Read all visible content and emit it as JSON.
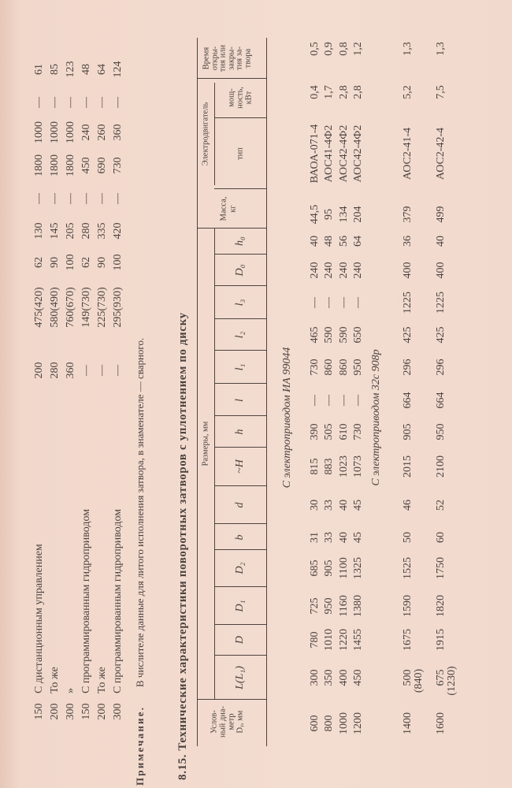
{
  "table1": {
    "rows": [
      [
        "150",
        "С дистанционным управлением",
        "200",
        "475(420)",
        "62",
        "130",
        "—",
        "1800",
        "1000",
        "—",
        "61"
      ],
      [
        "200",
        "То же",
        "280",
        "580(490)",
        "90",
        "145",
        "—",
        "1800",
        "1000",
        "—",
        "85"
      ],
      [
        "300",
        "»",
        "360",
        "760(670)",
        "100",
        "205",
        "—",
        "1800",
        "1000",
        "—",
        "123"
      ],
      [
        "150",
        "С программированным гидроприводом",
        "—",
        "149(730)",
        "62",
        "280",
        "—",
        "450",
        "240",
        "—",
        "48"
      ],
      [
        "200",
        "То же",
        "—",
        "225(730)",
        "90",
        "335",
        "—",
        "690",
        "260",
        "—",
        "64"
      ],
      [
        "300",
        "С программированным гидроприводом",
        "—",
        "295(930)",
        "100",
        "420",
        "—",
        "730",
        "360",
        "—",
        "124"
      ]
    ]
  },
  "note": {
    "label": "Примечание.",
    "text": "В числителе данные для литого исполнения затвора, в знаменателе — сварного."
  },
  "title": "8.15. Технические характеристики поворотных затворов с уплотнением по диску",
  "table2": {
    "header": {
      "dy": [
        "Услов-",
        "ный диа-",
        "метр",
        "Dᵧ, мм"
      ],
      "sizes_group": "Размеры, мм",
      "size_columns": [
        "L(L₁)",
        "D",
        "D₁",
        "D₂",
        "b",
        "d",
        "~H",
        "h",
        "l",
        "l₁",
        "l₂",
        "l₃",
        "D₀",
        "h₀"
      ],
      "mass": [
        "Масса,",
        "кг"
      ],
      "motor_group": "Электродвигатель",
      "motor_type": "тип",
      "motor_power": [
        "мощ-",
        "ность,",
        "кВт"
      ],
      "time": [
        "Время",
        "откры-",
        "тия или",
        "закры-",
        "тия за-",
        "твора"
      ]
    },
    "groups": [
      {
        "subtitle": "С электроприводом ИА 99044",
        "rows": [
          {
            "cells": [
              "600",
              "300",
              "780",
              "725",
              "685",
              "31",
              "30",
              "815",
              "390",
              "—",
              "730",
              "465",
              "—",
              "240",
              "40",
              "44,5",
              "ВАОА-071-4",
              "0,4",
              "0,5"
            ]
          },
          {
            "cells": [
              "800",
              "350",
              "1010",
              "950",
              "905",
              "33",
              "33",
              "883",
              "505",
              "—",
              "860",
              "590",
              "—",
              "240",
              "48",
              "95",
              "АОС41-4Ф2",
              "1,7",
              "0,9"
            ]
          },
          {
            "cells": [
              "1000",
              "400",
              "1220",
              "1160",
              "1100",
              "40",
              "40",
              "1023",
              "610",
              "—",
              "860",
              "590",
              "—",
              "240",
              "56",
              "134",
              "АОС42-4Ф2",
              "2,8",
              "0,8"
            ]
          },
          {
            "cells": [
              "1200",
              "450",
              "1455",
              "1380",
              "1325",
              "45",
              "45",
              "1073",
              "730",
              "—",
              "950",
              "650",
              "—",
              "240",
              "64",
              "204",
              "АОС42-4Ф2",
              "2,8",
              "1,2"
            ]
          }
        ]
      },
      {
        "subtitle": "С электроприводом 32с 908р",
        "rows": [
          {
            "cells": [
              "1400",
              "500",
              "1675",
              "1590",
              "1525",
              "50",
              "46",
              "2015",
              "905",
              "664",
              "296",
              "425",
              "1225",
              "400",
              "36",
              "379",
              "АОС2-41-4",
              "5,2",
              "1,3"
            ],
            "l_sub": "(840)"
          },
          {
            "cells": [
              "1600",
              "675",
              "1915",
              "1820",
              "1750",
              "60",
              "52",
              "2100",
              "950",
              "664",
              "296",
              "425",
              "1225",
              "400",
              "40",
              "499",
              "АОС2-42-4",
              "7,5",
              "1,3"
            ],
            "l_sub": "(1230)"
          }
        ]
      }
    ]
  },
  "colors": {
    "paper": "#f2dacd",
    "ink": "#4b4240"
  }
}
